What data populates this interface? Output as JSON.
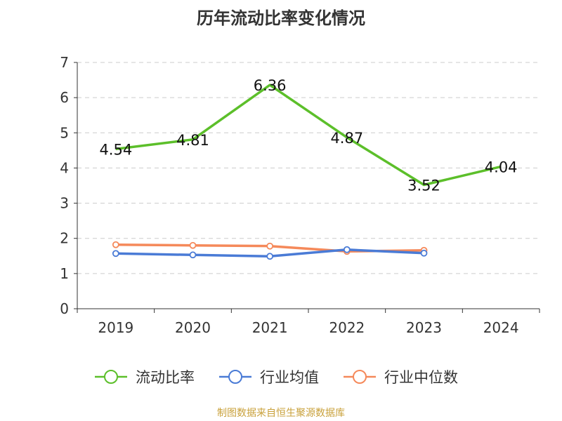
{
  "title": "历年流动比率变化情况",
  "footer": "制图数据来自恒生聚源数据库",
  "chart_data": {
    "type": "line",
    "title": "历年流动比率变化情况",
    "categories": [
      "2019",
      "2020",
      "2021",
      "2022",
      "2023",
      "2024"
    ],
    "ylim": [
      0,
      7
    ],
    "yticks": [
      "0",
      "1",
      "2",
      "3",
      "4",
      "5",
      "6",
      "7"
    ],
    "grid": true,
    "legend_position": "bottom",
    "series": [
      {
        "name": "流动比率",
        "color": "#5cbf2a",
        "values": [
          4.54,
          4.81,
          6.36,
          4.87,
          3.52,
          4.04
        ],
        "labels": true,
        "markers": false
      },
      {
        "name": "行业均值",
        "color": "#4a7bd6",
        "values": [
          1.57,
          1.53,
          1.49,
          1.68,
          1.58,
          null
        ],
        "labels": false,
        "markers": true
      },
      {
        "name": "行业中位数",
        "color": "#f5895a",
        "values": [
          1.82,
          1.8,
          1.78,
          1.63,
          1.66,
          null
        ],
        "labels": false,
        "markers": true
      }
    ]
  }
}
